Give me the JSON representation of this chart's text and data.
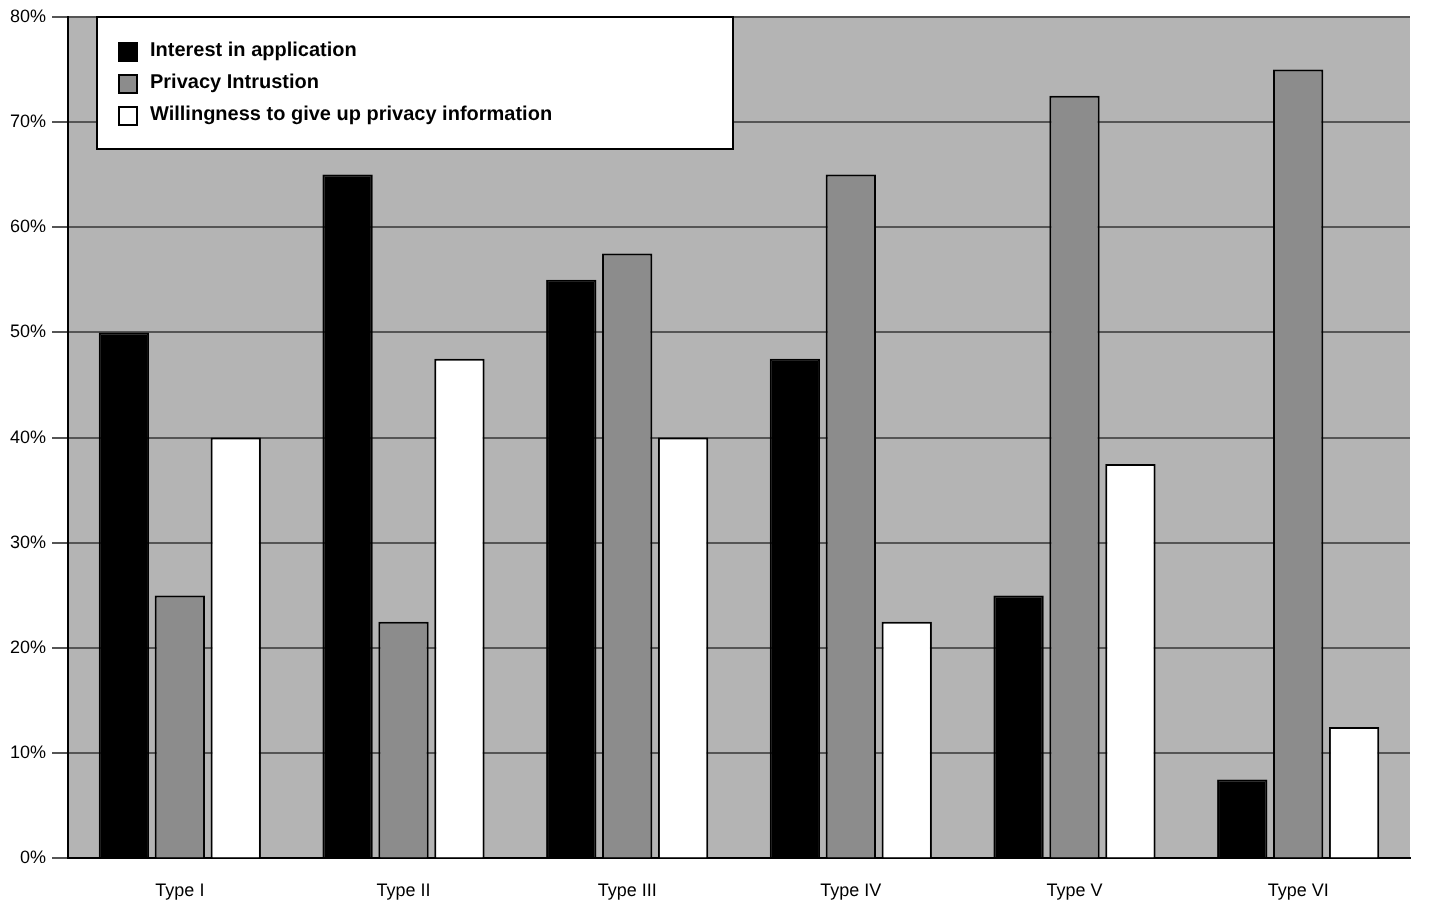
{
  "chart_data": {
    "type": "bar",
    "categories": [
      "Type I",
      "Type II",
      "Type III",
      "Type IV",
      "Type V",
      "Type VI"
    ],
    "series": [
      {
        "name": "Interest in application",
        "color": "#000000",
        "values": [
          50,
          65,
          55,
          47.5,
          25,
          7.5
        ]
      },
      {
        "name": "Privacy Intrustion",
        "color": "#8c8c8c",
        "values": [
          25,
          22.5,
          57.5,
          65,
          72.5,
          75
        ]
      },
      {
        "name": "Willingness to give up privacy information",
        "color": "#ffffff",
        "values": [
          40,
          47.5,
          40,
          22.5,
          37.5,
          12.5
        ]
      }
    ],
    "ylim": [
      0,
      80
    ],
    "yticks": [
      {
        "value": 0,
        "label": "0%"
      },
      {
        "value": 10,
        "label": "10%"
      },
      {
        "value": 20,
        "label": "20%"
      },
      {
        "value": 30,
        "label": "30%"
      },
      {
        "value": 40,
        "label": "40%"
      },
      {
        "value": 50,
        "label": "50%"
      },
      {
        "value": 60,
        "label": "60%"
      },
      {
        "value": 70,
        "label": "70%"
      },
      {
        "value": 80,
        "label": "80%"
      }
    ],
    "grid": "y",
    "legend": "top left"
  }
}
